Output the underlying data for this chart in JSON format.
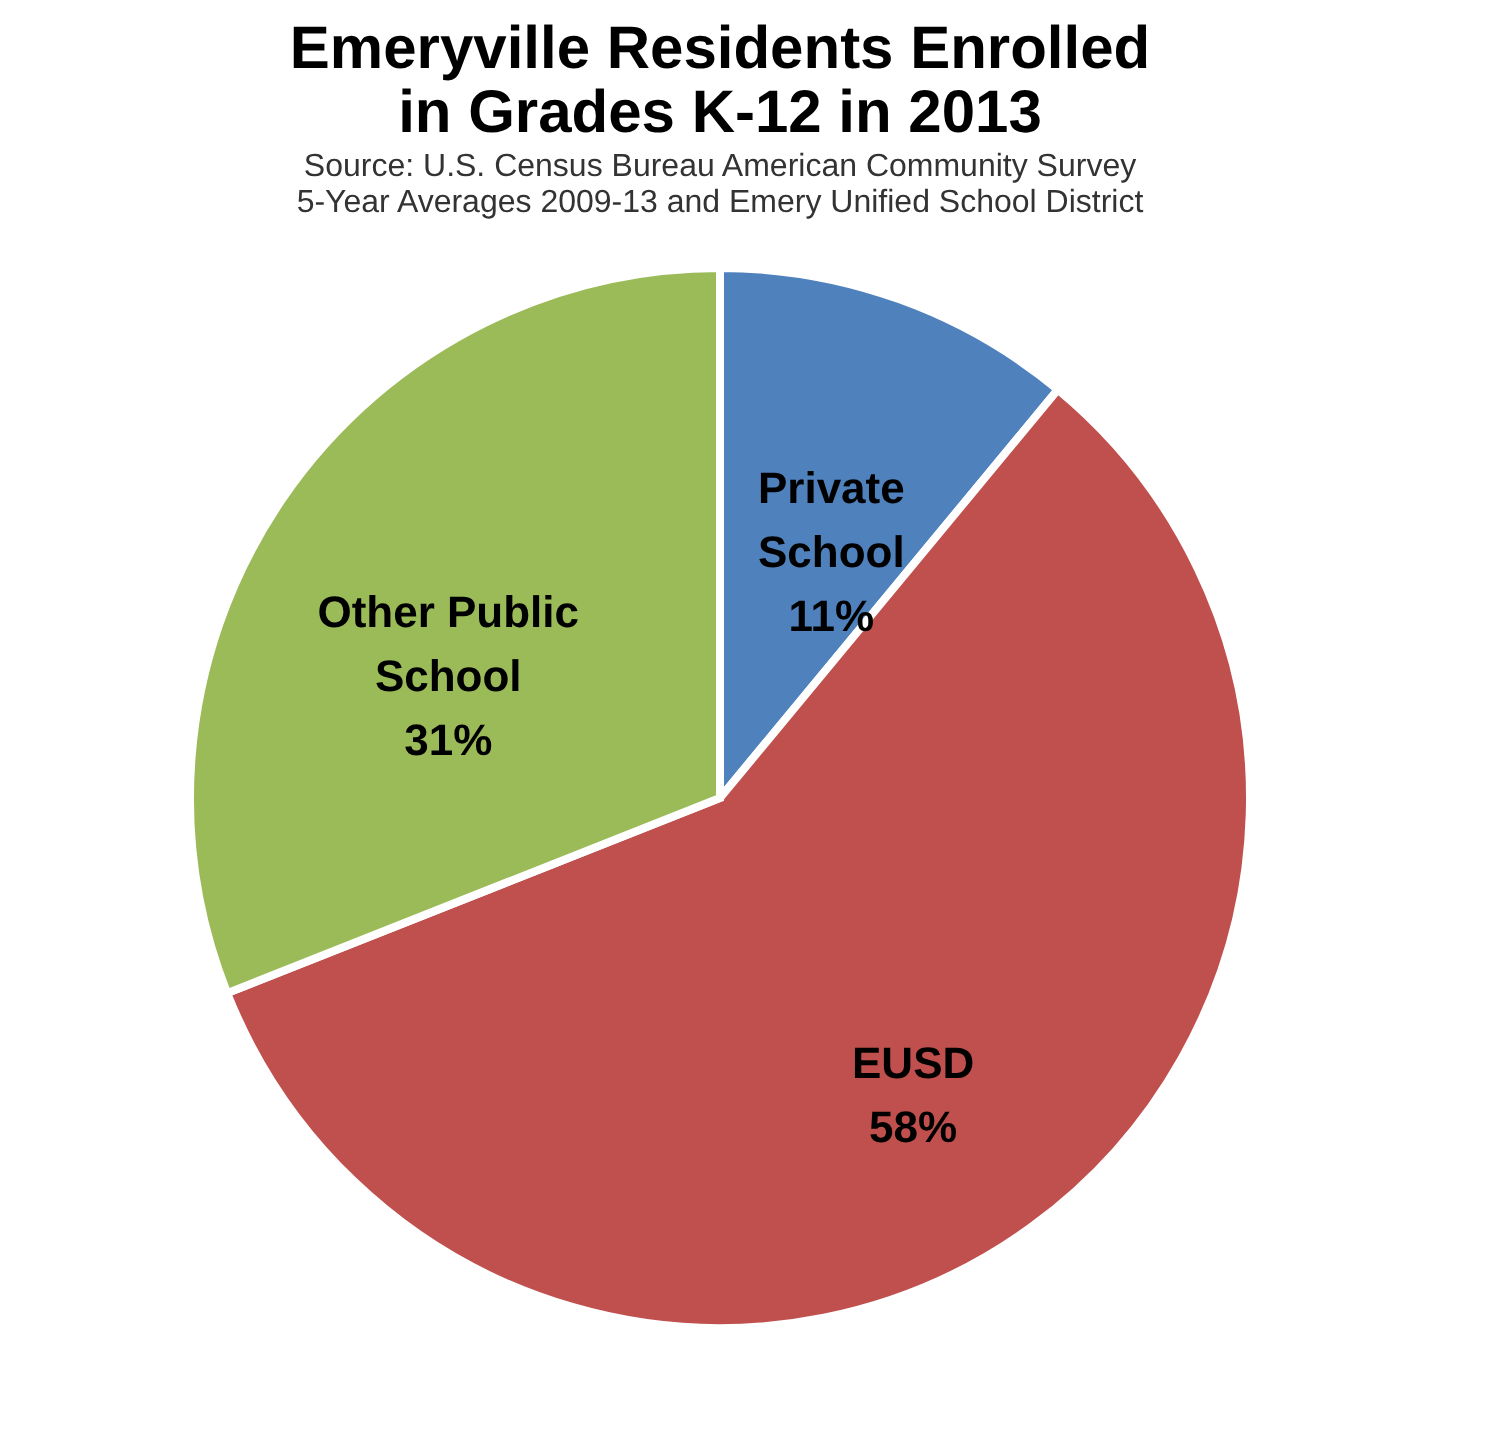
{
  "chart_data": {
    "type": "pie",
    "title": [
      "Emeryville Residents Enrolled",
      "in Grades K-12 in 2013"
    ],
    "annotations": [
      "Source: U.S. Census Bureau American Community Survey",
      "5-Year Averages 2009-13 and Emery Unified School District"
    ],
    "categories": [
      "Private School",
      "EUSD",
      "Other Public School"
    ],
    "values": [
      11,
      58,
      31
    ],
    "colors": [
      "#4f81bd",
      "#c0504d",
      "#9bbb59"
    ],
    "value_labels": [
      "11%",
      "58%",
      "31%"
    ],
    "legend": false
  }
}
